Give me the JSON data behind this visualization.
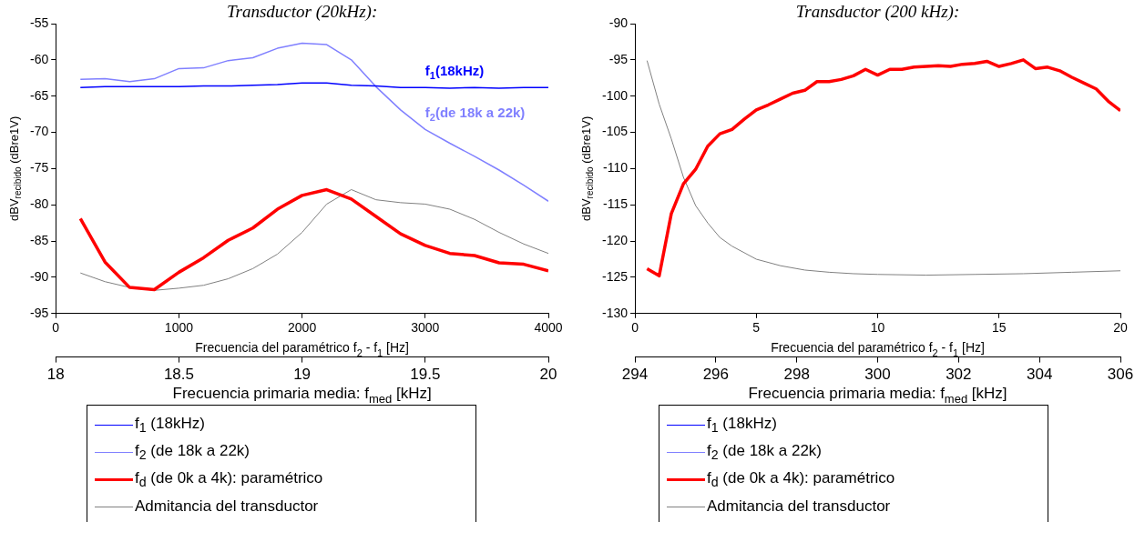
{
  "chart_data": [
    {
      "type": "line",
      "title": "Transductor (20kHz):",
      "xlabel": "Frecuencia del paramétrico f$_{2}$ - f$_{1}$ [Hz]",
      "ylabel": "dBV$_{recibido}$ (dBre1V)",
      "x2label": "Frecuencia primaria media: f$_{med}$ [kHz]",
      "x": [
        200,
        400,
        600,
        800,
        1000,
        1200,
        1400,
        1600,
        1800,
        2000,
        2200,
        2400,
        2600,
        2800,
        3000,
        3200,
        3400,
        3600,
        3800,
        4000
      ],
      "series": [
        {
          "name": "f$_{1}$ (18kHz)",
          "color": "#0000ff",
          "values": [
            -63.8,
            -63.7,
            -63.7,
            -63.7,
            -63.7,
            -63.6,
            -63.6,
            -63.5,
            -63.4,
            -63.2,
            -63.2,
            -63.5,
            -63.6,
            -63.8,
            -63.8,
            -63.9,
            -63.8,
            -63.9,
            -63.8,
            -63.8
          ]
        },
        {
          "name": "f$_{2}$ (de 18k a 22k)",
          "color": "#8080ff",
          "values": [
            -62.7,
            -62.6,
            -63.0,
            -62.6,
            -61.2,
            -61.1,
            -60.1,
            -59.7,
            -58.4,
            -57.7,
            -57.9,
            -60.0,
            -63.7,
            -66.9,
            -69.6,
            -71.5,
            -73.3,
            -75.2,
            -77.3,
            -79.5
          ]
        },
        {
          "name": "f$_{d}$ (de 0k a 4k): paramétrico",
          "color": "#ff0000",
          "values": [
            -81.9,
            -87.9,
            -91.4,
            -91.7,
            -89.3,
            -87.3,
            -84.9,
            -83.2,
            -80.6,
            -78.7,
            -77.9,
            -79.2,
            -81.6,
            -84.0,
            -85.6,
            -86.7,
            -87.0,
            -88.0,
            -88.2,
            -89.1
          ]
        },
        {
          "name": "Admitancia del transductor",
          "color": "#808080",
          "values": [
            -89.4,
            -90.6,
            -91.4,
            -91.8,
            -91.5,
            -91.1,
            -90.2,
            -88.8,
            -86.8,
            -83.8,
            -79.9,
            -77.9,
            -79.3,
            -79.7,
            -79.9,
            -80.6,
            -82.0,
            -83.8,
            -85.4,
            -86.7
          ]
        }
      ],
      "xlim": [
        0,
        4000
      ],
      "xticks": [
        0,
        1000,
        2000,
        3000,
        4000
      ],
      "ylim": [
        -95,
        -55
      ],
      "yticks": [
        -95,
        -90,
        -85,
        -80,
        -75,
        -70,
        -65,
        -60,
        -55
      ],
      "x2lim": [
        18,
        20
      ],
      "x2ticks": [
        18,
        18.5,
        19,
        19.5,
        20
      ],
      "annotations": [
        "f$_{1}$(18kHz)",
        "f$_{2}$(de 18k a 22k)"
      ],
      "grid": false,
      "legend": "bottom"
    },
    {
      "type": "line",
      "title": "Transductor (200 kHz):",
      "xlabel": "Frecuencia del paramétrico f$_{2}$ - f$_{1}$ [Hz]",
      "ylabel": "dBV$_{recibido}$ (dBre1V)",
      "x2label": "Frecuencia primaria media: f$_{med}$ [kHz]",
      "series": [
        {
          "name": "f$_{1}$ (18kHz)",
          "color": "#0000ff"
        },
        {
          "name": "f$_{2}$ (de 18k a 22k)",
          "color": "#8080ff"
        },
        {
          "name": "f$_{d}$ (de 0k a 4k): paramétrico",
          "color": "#ff0000",
          "x": [
            0.5,
            1,
            1.5,
            2,
            2.5,
            3,
            3.5,
            4,
            4.5,
            5,
            5.5,
            6,
            6.5,
            7,
            7.5,
            8,
            8.5,
            9,
            9.5,
            10,
            10.5,
            11,
            11.5,
            12,
            12.5,
            13,
            13.5,
            14,
            14.5,
            15,
            15.5,
            16,
            16.5,
            17,
            17.5,
            18,
            18.5,
            19,
            19.5,
            20
          ],
          "values": [
            -123.8,
            -124.8,
            -116.2,
            -112.1,
            -110.1,
            -106.9,
            -105.2,
            -104.6,
            -103.2,
            -101.9,
            -101.2,
            -100.4,
            -99.6,
            -99.2,
            -98.0,
            -98.0,
            -97.7,
            -97.2,
            -96.3,
            -97.1,
            -96.3,
            -96.3,
            -96.0,
            -95.9,
            -95.8,
            -95.9,
            -95.6,
            -95.5,
            -95.2,
            -95.9,
            -95.5,
            -95.0,
            -96.2,
            -96.0,
            -96.5,
            -97.4,
            -98.2,
            -99.0,
            -100.7,
            -102.0
          ]
        },
        {
          "name": "Admitancia del transductor",
          "color": "#808080",
          "x": [
            0.5,
            1,
            1.5,
            2,
            2.5,
            3,
            3.5,
            4,
            5,
            6,
            7,
            8,
            9,
            10,
            12,
            14,
            16,
            18,
            20
          ],
          "values": [
            -95.1,
            -101.1,
            -105.9,
            -111.2,
            -115.1,
            -117.5,
            -119.5,
            -120.7,
            -122.5,
            -123.4,
            -124.0,
            -124.3,
            -124.5,
            -124.6,
            -124.7,
            -124.6,
            -124.5,
            -124.3,
            -124.1
          ]
        }
      ],
      "xlim": [
        0,
        20
      ],
      "xticks": [
        0,
        5,
        10,
        15,
        20
      ],
      "ylim": [
        -130,
        -90
      ],
      "yticks": [
        -130,
        -125,
        -120,
        -115,
        -110,
        -105,
        -100,
        -95,
        -90
      ],
      "x2lim": [
        294,
        306
      ],
      "x2ticks": [
        294,
        296,
        298,
        300,
        302,
        304,
        306
      ],
      "grid": false,
      "legend": "bottom"
    }
  ]
}
